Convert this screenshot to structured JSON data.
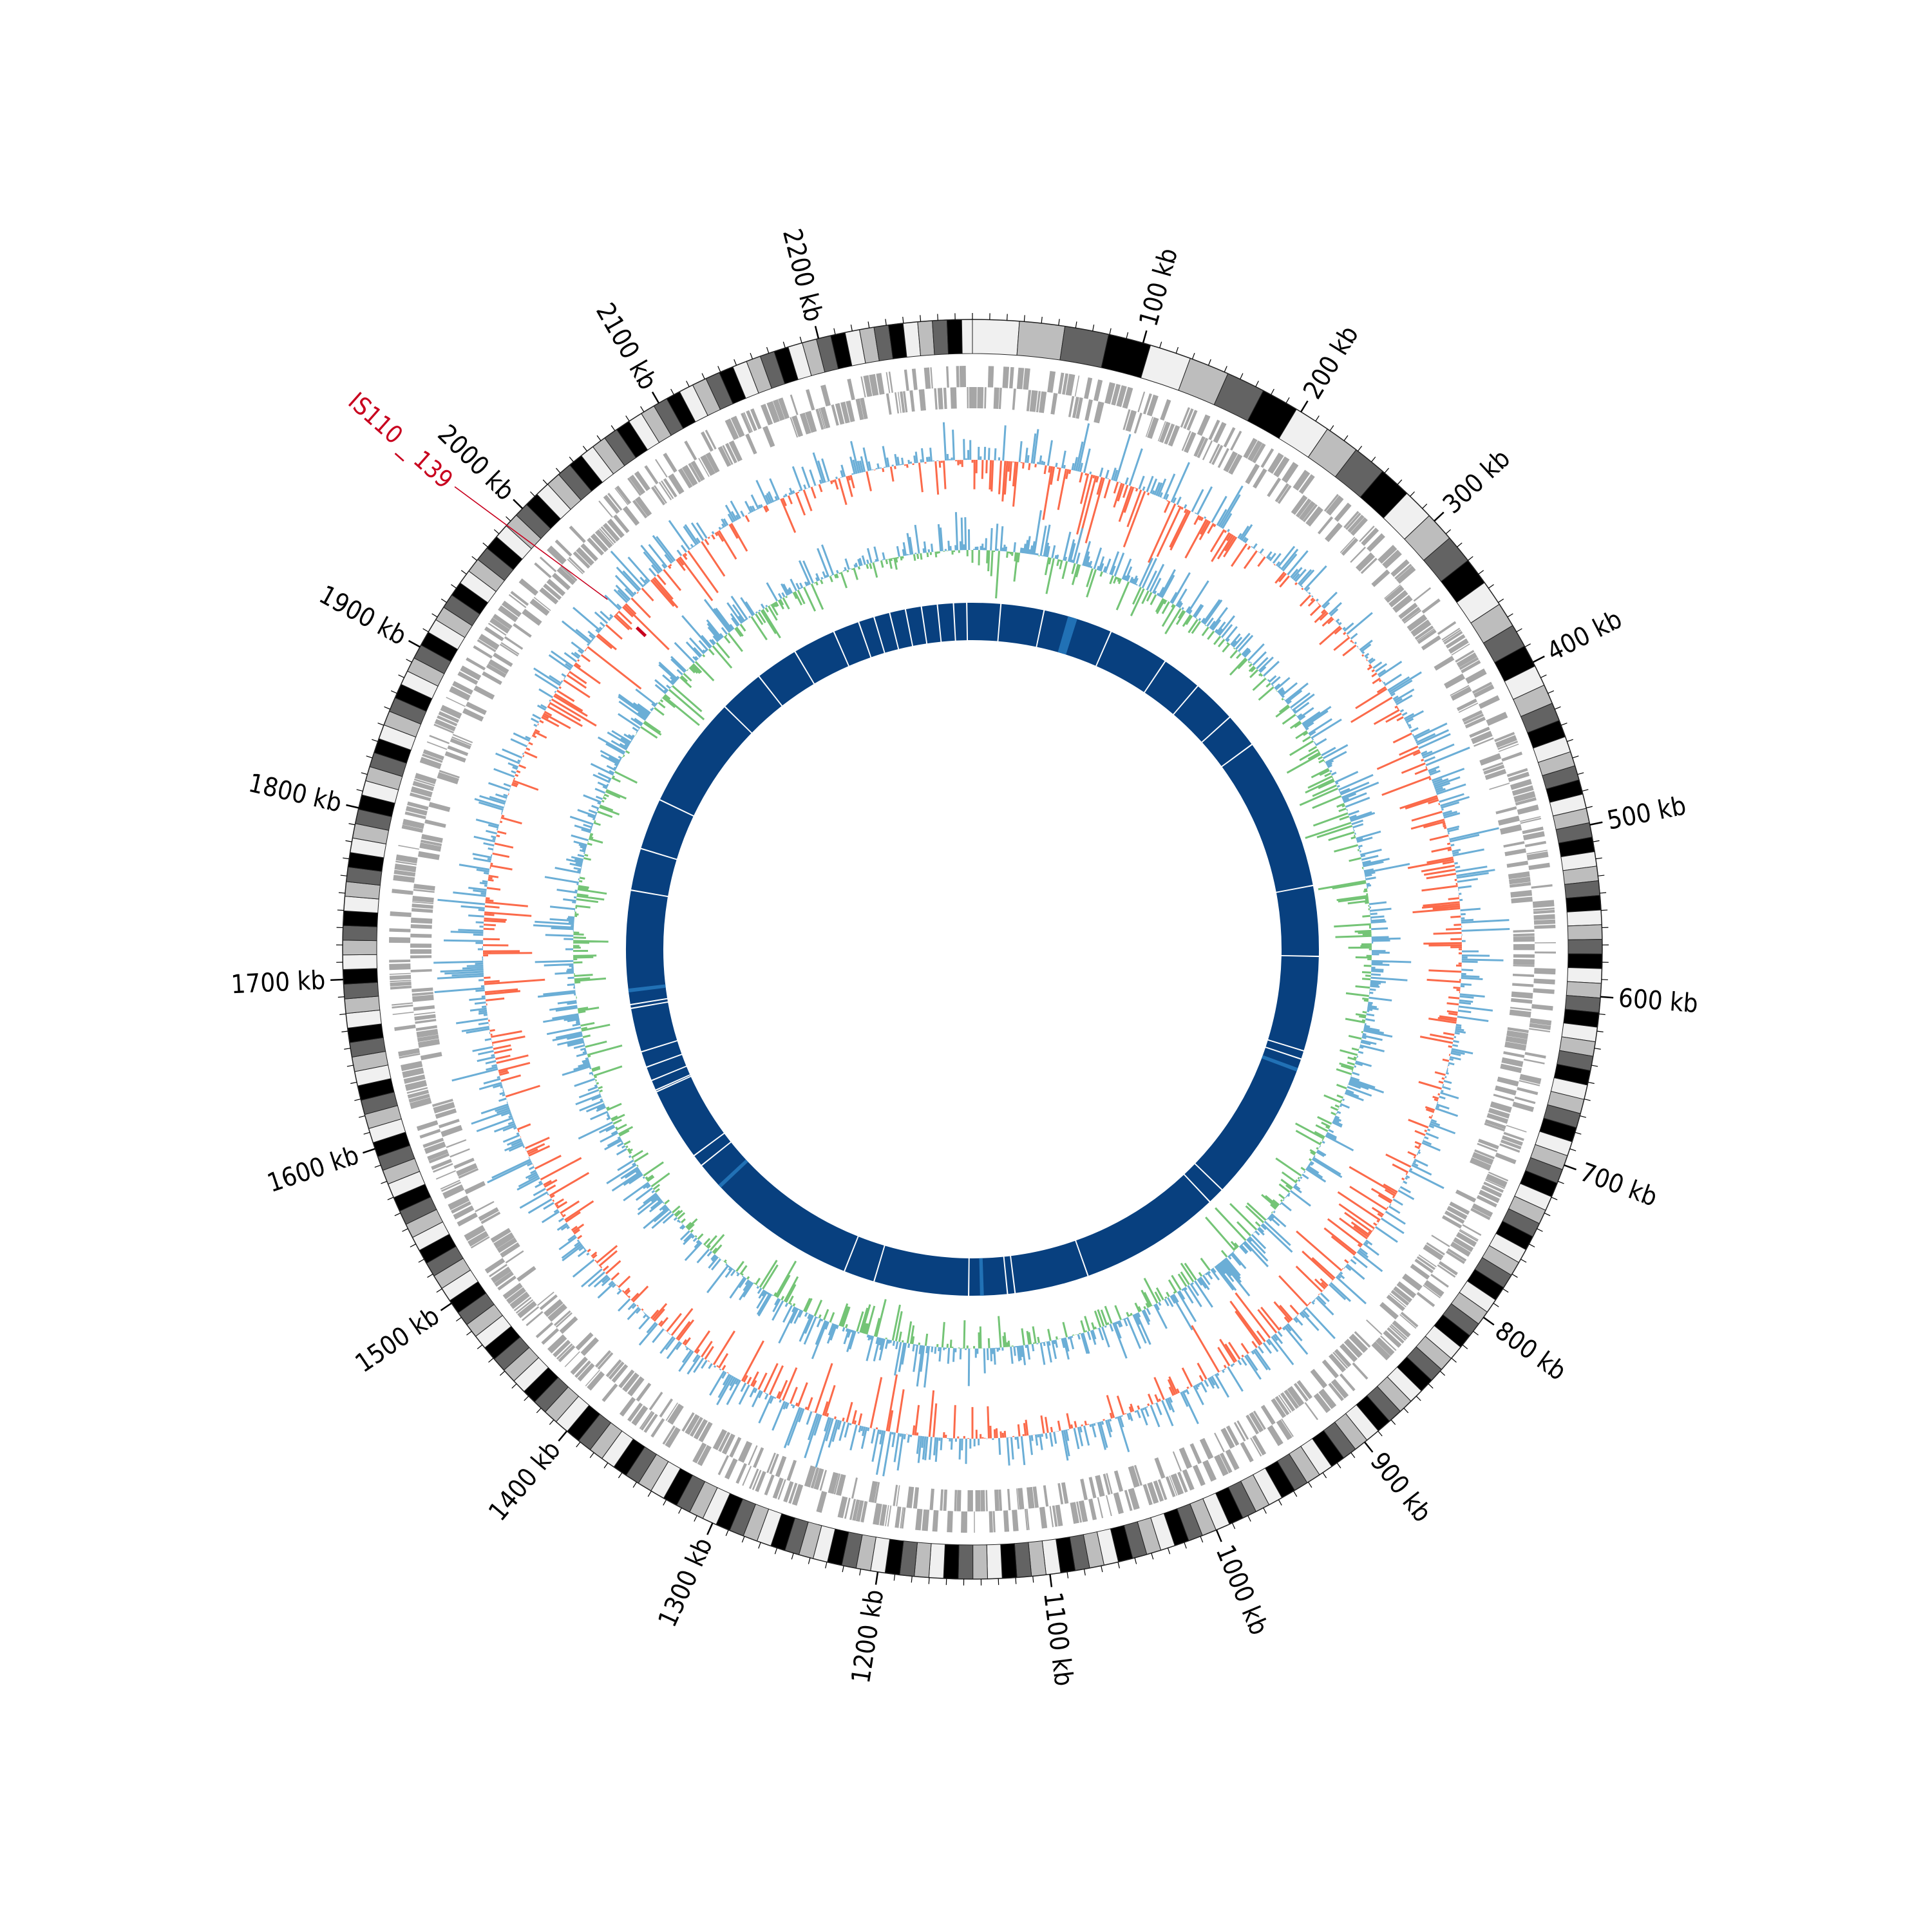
{
  "diagram": {
    "type": "circular-genome-map",
    "genome_length_kb": 2290,
    "tick_labels": [
      {
        "kb": 100,
        "label": "100 kb"
      },
      {
        "kb": 200,
        "label": "200 kb"
      },
      {
        "kb": 300,
        "label": "300 kb"
      },
      {
        "kb": 400,
        "label": "400 kb"
      },
      {
        "kb": 500,
        "label": "500 kb"
      },
      {
        "kb": 600,
        "label": "600 kb"
      },
      {
        "kb": 700,
        "label": "700 kb"
      },
      {
        "kb": 800,
        "label": "800 kb"
      },
      {
        "kb": 900,
        "label": "900 kb"
      },
      {
        "kb": 1000,
        "label": "1000 kb"
      },
      {
        "kb": 1100,
        "label": "1100 kb"
      },
      {
        "kb": 1200,
        "label": "1200 kb"
      },
      {
        "kb": 1300,
        "label": "1300 kb"
      },
      {
        "kb": 1400,
        "label": "1400 kb"
      },
      {
        "kb": 1500,
        "label": "1500 kb"
      },
      {
        "kb": 1600,
        "label": "1600 kb"
      },
      {
        "kb": 1700,
        "label": "1700 kb"
      },
      {
        "kb": 1800,
        "label": "1800 kb"
      },
      {
        "kb": 1900,
        "label": "1900 kb"
      },
      {
        "kb": 2000,
        "label": "2000 kb"
      },
      {
        "kb": 2100,
        "label": "2100 kb"
      },
      {
        "kb": 2200,
        "label": "2200 kb"
      }
    ],
    "annotations": [
      {
        "label": "IS110 _ 139",
        "kb": 1996,
        "color": "#c8001e"
      }
    ],
    "gaps_kb": [
      30,
      76,
      150,
      215,
      258,
      305,
      342,
      505,
      580,
      681,
      690,
      852,
      870,
      1021,
      1100,
      1108,
      1149,
      1250,
      1283,
      1472,
      1485,
      1563,
      1565,
      1576,
      1591,
      1608,
      1655,
      1659,
      1780,
      1825,
      1880,
      2000,
      2048,
      2094,
      2140,
      2168,
      2185,
      2202,
      2219,
      2236,
      2253,
      2270,
      2284
    ],
    "colors": {
      "karyotype": [
        "#f0f0f0",
        "#bdbdbd",
        "#636363",
        "#000000"
      ],
      "genes": "#a6a6a6",
      "gc_skew_positive": "#6baed6",
      "gc_skew_negative": "#fb6a4a",
      "gc_content_positive": "#74c476",
      "gc_content_negative": "#6baed6",
      "inner_ring": "#08407f",
      "inner_ring_highlight": "#2171b5",
      "annotation": "#c8001e"
    }
  }
}
